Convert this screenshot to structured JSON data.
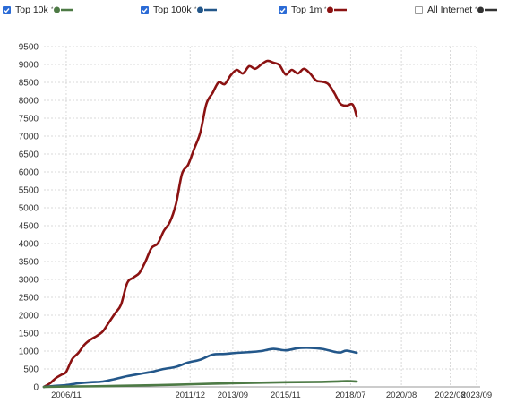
{
  "legend": [
    {
      "label": "Top 10k",
      "checked": true,
      "color": "#4d7a45"
    },
    {
      "label": "Top 100k",
      "checked": true,
      "color": "#23578a"
    },
    {
      "label": "Top 1m",
      "checked": true,
      "color": "#8b1212"
    },
    {
      "label": "All Internet",
      "checked": false,
      "color": "#333333"
    }
  ],
  "chart_data": {
    "type": "line",
    "grid": true,
    "ylim": [
      0,
      9500
    ],
    "xlim": [
      "2005-12",
      "2023-09"
    ],
    "y_ticks": [
      0,
      500,
      1000,
      1500,
      2000,
      2500,
      3000,
      3500,
      4000,
      4500,
      5000,
      5500,
      6000,
      6500,
      7000,
      7500,
      8000,
      8500,
      9000,
      9500
    ],
    "x_ticks": [
      "2006/11",
      "2011/12",
      "2013/09",
      "2015/11",
      "2018/07",
      "2020/08",
      "2022/08",
      "2023/09"
    ],
    "series": [
      {
        "name": "Top 1m",
        "color": "#8b1212",
        "points": [
          [
            "2005-12",
            0
          ],
          [
            "2006-03",
            100
          ],
          [
            "2006-06",
            250
          ],
          [
            "2006-09",
            350
          ],
          [
            "2006-11",
            420
          ],
          [
            "2007-02",
            780
          ],
          [
            "2007-05",
            950
          ],
          [
            "2007-08",
            1180
          ],
          [
            "2007-11",
            1320
          ],
          [
            "2008-02",
            1420
          ],
          [
            "2008-05",
            1550
          ],
          [
            "2008-08",
            1800
          ],
          [
            "2008-11",
            2050
          ],
          [
            "2009-02",
            2300
          ],
          [
            "2009-05",
            2900
          ],
          [
            "2009-08",
            3050
          ],
          [
            "2009-11",
            3180
          ],
          [
            "2010-02",
            3500
          ],
          [
            "2010-05",
            3880
          ],
          [
            "2010-08",
            4000
          ],
          [
            "2010-11",
            4350
          ],
          [
            "2011-02",
            4600
          ],
          [
            "2011-05",
            5100
          ],
          [
            "2011-08",
            5950
          ],
          [
            "2011-11",
            6200
          ],
          [
            "2012-02",
            6650
          ],
          [
            "2012-05",
            7100
          ],
          [
            "2012-08",
            7900
          ],
          [
            "2012-11",
            8200
          ],
          [
            "2013-02",
            8500
          ],
          [
            "2013-05",
            8450
          ],
          [
            "2013-08",
            8700
          ],
          [
            "2013-11",
            8850
          ],
          [
            "2014-02",
            8750
          ],
          [
            "2014-05",
            8950
          ],
          [
            "2014-08",
            8880
          ],
          [
            "2014-11",
            9000
          ],
          [
            "2015-02",
            9100
          ],
          [
            "2015-05",
            9050
          ],
          [
            "2015-08",
            8980
          ],
          [
            "2015-11",
            8720
          ],
          [
            "2016-02",
            8850
          ],
          [
            "2016-05",
            8750
          ],
          [
            "2016-08",
            8880
          ],
          [
            "2016-11",
            8750
          ],
          [
            "2017-02",
            8550
          ],
          [
            "2017-05",
            8520
          ],
          [
            "2017-08",
            8450
          ],
          [
            "2017-11",
            8200
          ],
          [
            "2018-02",
            7900
          ],
          [
            "2018-05",
            7850
          ],
          [
            "2018-08",
            7880
          ],
          [
            "2018-10",
            7550
          ]
        ]
      },
      {
        "name": "Top 100k",
        "color": "#23578a",
        "points": [
          [
            "2005-12",
            0
          ],
          [
            "2006-06",
            30
          ],
          [
            "2006-11",
            50
          ],
          [
            "2007-05",
            100
          ],
          [
            "2007-11",
            130
          ],
          [
            "2008-05",
            150
          ],
          [
            "2008-11",
            220
          ],
          [
            "2009-05",
            300
          ],
          [
            "2009-11",
            360
          ],
          [
            "2010-05",
            420
          ],
          [
            "2010-11",
            500
          ],
          [
            "2011-05",
            560
          ],
          [
            "2011-11",
            680
          ],
          [
            "2012-05",
            760
          ],
          [
            "2012-11",
            900
          ],
          [
            "2013-05",
            920
          ],
          [
            "2013-11",
            950
          ],
          [
            "2014-05",
            970
          ],
          [
            "2014-11",
            1000
          ],
          [
            "2015-05",
            1060
          ],
          [
            "2015-11",
            1020
          ],
          [
            "2016-05",
            1080
          ],
          [
            "2016-11",
            1090
          ],
          [
            "2017-05",
            1060
          ],
          [
            "2017-11",
            980
          ],
          [
            "2018-02",
            960
          ],
          [
            "2018-05",
            1010
          ],
          [
            "2018-10",
            950
          ]
        ]
      },
      {
        "name": "Top 10k",
        "color": "#4d7a45",
        "points": [
          [
            "2005-12",
            0
          ],
          [
            "2006-11",
            10
          ],
          [
            "2008-05",
            20
          ],
          [
            "2009-11",
            40
          ],
          [
            "2011-05",
            60
          ],
          [
            "2012-11",
            90
          ],
          [
            "2014-05",
            110
          ],
          [
            "2015-11",
            130
          ],
          [
            "2017-05",
            140
          ],
          [
            "2018-05",
            160
          ],
          [
            "2018-10",
            150
          ]
        ]
      }
    ]
  }
}
